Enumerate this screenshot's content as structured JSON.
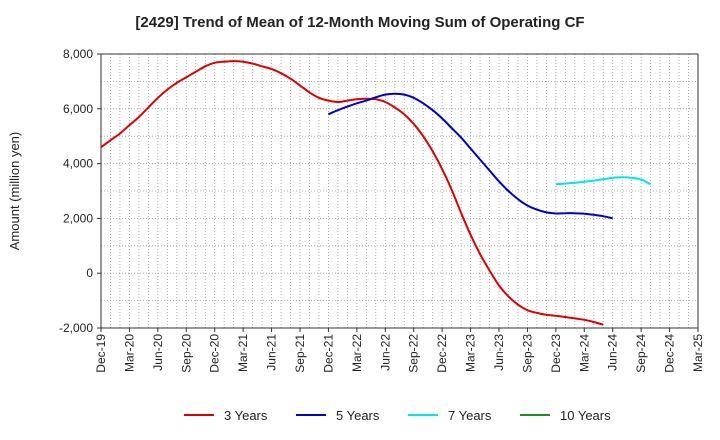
{
  "chart_data": {
    "type": "line",
    "title": "[2429]  Trend of Mean of 12-Month Moving Sum of Operating CF",
    "xlabel": "",
    "ylabel": "Amount (million yen)",
    "ylim": [
      -2000,
      8000
    ],
    "yticks": [
      -2000,
      0,
      2000,
      4000,
      6000,
      8000
    ],
    "ytick_labels": [
      "-2,000",
      "0",
      "2,000",
      "4,000",
      "6,000",
      "8,000"
    ],
    "x_start": "Dec-19",
    "x_tick_labels": [
      "Dec-19",
      "Mar-20",
      "Jun-20",
      "Sep-20",
      "Dec-20",
      "Mar-21",
      "Jun-21",
      "Sep-21",
      "Dec-21",
      "Mar-22",
      "Jun-22",
      "Sep-22",
      "Dec-22",
      "Mar-23",
      "Jun-23",
      "Sep-23",
      "Dec-23",
      "Mar-24",
      "Jun-24",
      "Sep-24",
      "Dec-24",
      "Mar-25"
    ],
    "grid": true,
    "legend_position": "bottom",
    "series": [
      {
        "name": "3 Years",
        "color": "#dd0000",
        "start_index": 0,
        "values": [
          4600,
          4850,
          5100,
          5400,
          5700,
          6050,
          6400,
          6700,
          6950,
          7150,
          7350,
          7550,
          7680,
          7720,
          7740,
          7720,
          7650,
          7550,
          7450,
          7300,
          7100,
          6850,
          6600,
          6400,
          6300,
          6250,
          6300,
          6350,
          6370,
          6350,
          6250,
          6050,
          5800,
          5450,
          5000,
          4450,
          3800,
          3050,
          2200,
          1400,
          700,
          100,
          -450,
          -850,
          -1150,
          -1350,
          -1450,
          -1520,
          -1550,
          -1600,
          -1650,
          -1700,
          -1780,
          -1880
        ]
      },
      {
        "name": "5 Years",
        "color": "#0000cc",
        "start_index": 24,
        "values": [
          5800,
          5950,
          6080,
          6200,
          6300,
          6420,
          6520,
          6550,
          6520,
          6400,
          6200,
          5950,
          5650,
          5300,
          4950,
          4550,
          4150,
          3750,
          3350,
          3000,
          2700,
          2470,
          2320,
          2220,
          2180,
          2190,
          2190,
          2170,
          2130,
          2080,
          2000
        ]
      },
      {
        "name": "7 Years",
        "color": "#00e5ee",
        "start_index": 48,
        "values": [
          3250,
          3270,
          3300,
          3340,
          3380,
          3430,
          3480,
          3500,
          3480,
          3420,
          3240
        ]
      },
      {
        "name": "10 Years",
        "color": "#228b22",
        "start_index": 0,
        "values": []
      }
    ]
  }
}
